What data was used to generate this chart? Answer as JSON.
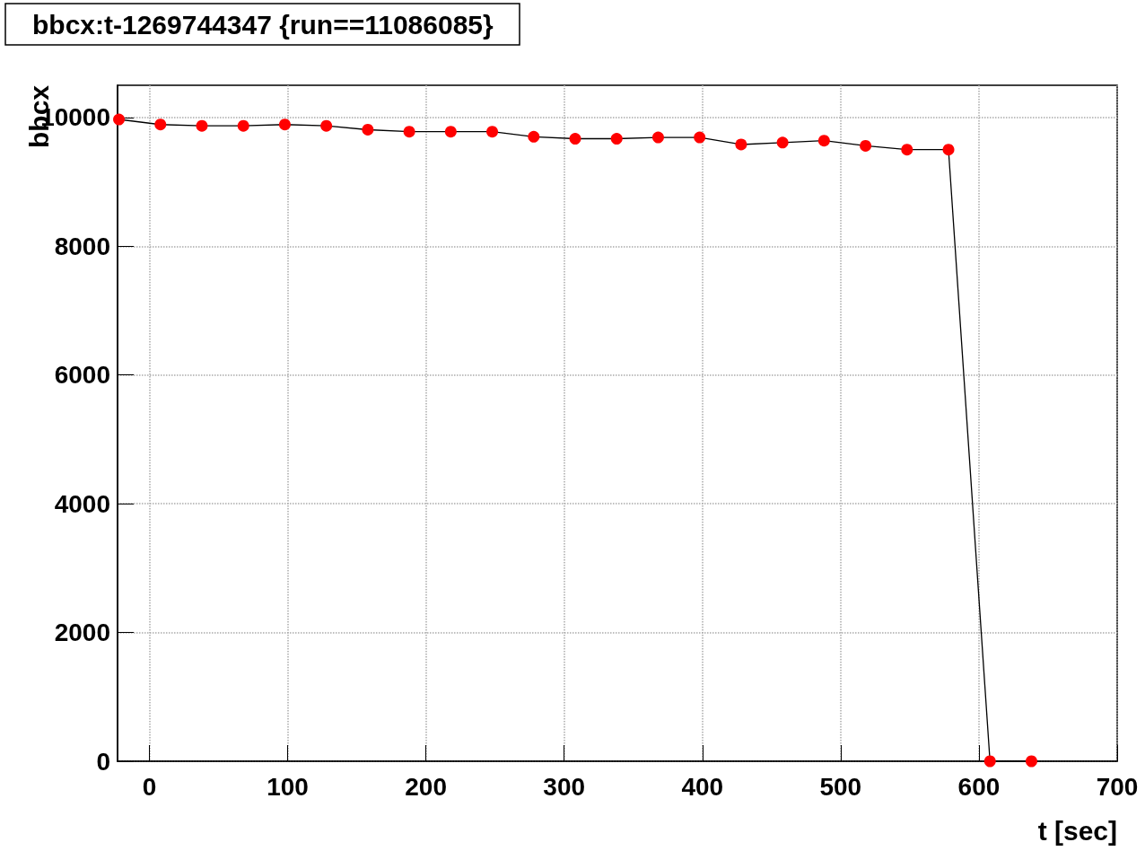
{
  "chart_data": {
    "type": "line",
    "title": "bbcx:t-1269744347 {run==11086085}",
    "xlabel": "t [sec]",
    "ylabel": "bbcx",
    "x": [
      -22,
      8,
      38,
      68,
      98,
      128,
      158,
      188,
      218,
      248,
      278,
      308,
      338,
      368,
      398,
      428,
      458,
      488,
      518,
      548,
      578,
      608,
      638
    ],
    "series": [
      {
        "color": "#ff0000",
        "values": [
          9970,
          9890,
          9870,
          9870,
          9890,
          9870,
          9810,
          9780,
          9780,
          9780,
          9700,
          9670,
          9670,
          9690,
          9690,
          9580,
          9610,
          9640,
          9560,
          9500,
          9500,
          0,
          0
        ]
      }
    ],
    "xlim": [
      -23,
      700
    ],
    "xticks": [
      0,
      100,
      200,
      300,
      400,
      500,
      600,
      700
    ],
    "ylim": [
      0,
      10500
    ],
    "yticks": [
      0,
      2000,
      4000,
      6000,
      8000,
      10000
    ],
    "grid": true,
    "marker": "circle",
    "line_style": "solid"
  }
}
